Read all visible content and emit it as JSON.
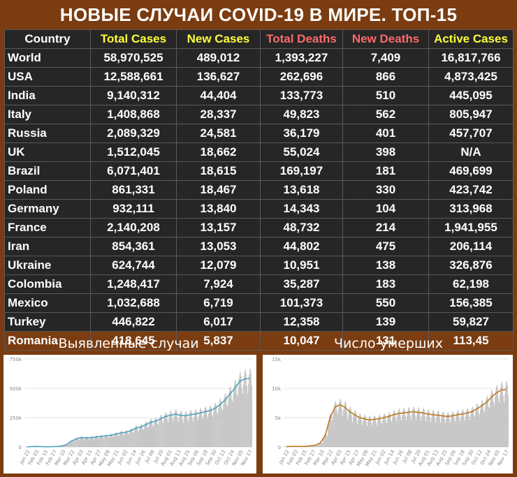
{
  "title": "НОВЫЕ СЛУЧАИ COVID-19 В МИРЕ. ТОП-15",
  "colors": {
    "background": "#7a3c10",
    "table_bg": "#262626",
    "header_country": "#ffffff",
    "header_cases": "#ffff3a",
    "header_deaths": "#ff6a6a",
    "bar": "#b0b0b0",
    "line_cases": "#4aa3c0",
    "line_deaths": "#c07a20"
  },
  "table": {
    "headers": [
      "Country",
      "Total Cases",
      "New Cases",
      "Total Deaths",
      "New Deaths",
      "Active Cases"
    ],
    "rows": [
      [
        "World",
        "58,970,525",
        "489,012",
        "1,393,227",
        "7,409",
        "16,817,766"
      ],
      [
        "USA",
        "12,588,661",
        "136,627",
        "262,696",
        "866",
        "4,873,425"
      ],
      [
        "India",
        "9,140,312",
        "44,404",
        "133,773",
        "510",
        "445,095"
      ],
      [
        "Italy",
        "1,408,868",
        "28,337",
        "49,823",
        "562",
        "805,947"
      ],
      [
        "Russia",
        "2,089,329",
        "24,581",
        "36,179",
        "401",
        "457,707"
      ],
      [
        "UK",
        "1,512,045",
        "18,662",
        "55,024",
        "398",
        "N/A"
      ],
      [
        "Brazil",
        "6,071,401",
        "18,615",
        "169,197",
        "181",
        "469,699"
      ],
      [
        "Poland",
        "861,331",
        "18,467",
        "13,618",
        "330",
        "423,742"
      ],
      [
        "Germany",
        "932,111",
        "13,840",
        "14,343",
        "104",
        "313,968"
      ],
      [
        "France",
        "2,140,208",
        "13,157",
        "48,732",
        "214",
        "1,941,955"
      ],
      [
        "Iran",
        "854,361",
        "13,053",
        "44,802",
        "475",
        "206,114"
      ],
      [
        "Ukraine",
        "624,744",
        "12,079",
        "10,951",
        "138",
        "326,876"
      ],
      [
        "Colombia",
        "1,248,417",
        "7,924",
        "35,287",
        "183",
        "62,198"
      ],
      [
        "Mexico",
        "1,032,688",
        "6,719",
        "101,373",
        "550",
        "156,385"
      ],
      [
        "Turkey",
        "446,822",
        "6,017",
        "12,358",
        "139",
        "59,827"
      ],
      [
        "Romania",
        "418,645",
        "5,837",
        "10,047",
        "131",
        "113,45"
      ]
    ]
  },
  "chart_data": [
    {
      "type": "bar",
      "title": "Выявленные случаи",
      "ylim": [
        0,
        750000
      ],
      "yticks": [
        0,
        250000,
        500000,
        750000
      ],
      "ytick_labels": [
        "0",
        "250k",
        "500k",
        "750k"
      ],
      "xtick_labels": [
        "Jan 22",
        "Feb 03",
        "Feb 15",
        "Feb 27",
        "Mar 10",
        "Mar 22",
        "Apr 03",
        "Apr 15",
        "Apr 27",
        "May 09",
        "May 21",
        "Jun 02",
        "Jun 14",
        "Jun 26",
        "Jul 08",
        "Jul 20",
        "Aug 01",
        "Aug 13",
        "Aug 25",
        "Sep 06",
        "Sep 18",
        "Sep 30",
        "Oct 12",
        "Oct 24",
        "Nov 05",
        "Nov 17"
      ],
      "weekly_new_cases": [
        1000,
        3000,
        5000,
        3000,
        2000,
        3000,
        4000,
        8000,
        20000,
        50000,
        70000,
        80000,
        78000,
        80000,
        85000,
        90000,
        95000,
        100000,
        110000,
        120000,
        125000,
        140000,
        160000,
        170000,
        190000,
        210000,
        220000,
        240000,
        260000,
        270000,
        280000,
        270000,
        265000,
        275000,
        280000,
        290000,
        300000,
        310000,
        330000,
        360000,
        400000,
        450000,
        500000,
        560000,
        580000,
        585000
      ],
      "series": [
        {
          "name": "",
          "style": "bars",
          "color": "#b0b0b0"
        },
        {
          "name": "",
          "style": "moving-average line",
          "color": "#4aa3c0"
        }
      ]
    },
    {
      "type": "bar",
      "title": "Число умерших",
      "ylim": [
        0,
        15000
      ],
      "yticks": [
        0,
        5000,
        10000,
        15000
      ],
      "ytick_labels": [
        "0",
        "5k",
        "10k",
        "15k"
      ],
      "xtick_labels": [
        "Jan 22",
        "Feb 03",
        "Feb 15",
        "Feb 27",
        "Mar 10",
        "Mar 22",
        "Apr 03",
        "Apr 15",
        "Apr 27",
        "May 09",
        "May 21",
        "Jun 02",
        "Jun 14",
        "Jun 26",
        "Jul 08",
        "Jul 20",
        "Aug 01",
        "Aug 13",
        "Aug 25",
        "Sep 06",
        "Sep 18",
        "Sep 30",
        "Oct 12",
        "Oct 24",
        "Nov 05",
        "Nov 17"
      ],
      "weekly_new_deaths": [
        50,
        100,
        100,
        100,
        100,
        200,
        300,
        700,
        2000,
        5000,
        6800,
        7200,
        6800,
        6000,
        5500,
        5000,
        4800,
        4600,
        4700,
        4800,
        5000,
        5200,
        5500,
        5700,
        5800,
        5900,
        6000,
        5900,
        5800,
        5600,
        5500,
        5400,
        5300,
        5200,
        5300,
        5500,
        5600,
        5800,
        6000,
        6500,
        7000,
        7600,
        8500,
        9200,
        9700,
        9800
      ],
      "series": [
        {
          "name": "",
          "style": "bars",
          "color": "#b0b0b0"
        },
        {
          "name": "",
          "style": "moving-average line",
          "color": "#c07a20"
        }
      ]
    }
  ]
}
